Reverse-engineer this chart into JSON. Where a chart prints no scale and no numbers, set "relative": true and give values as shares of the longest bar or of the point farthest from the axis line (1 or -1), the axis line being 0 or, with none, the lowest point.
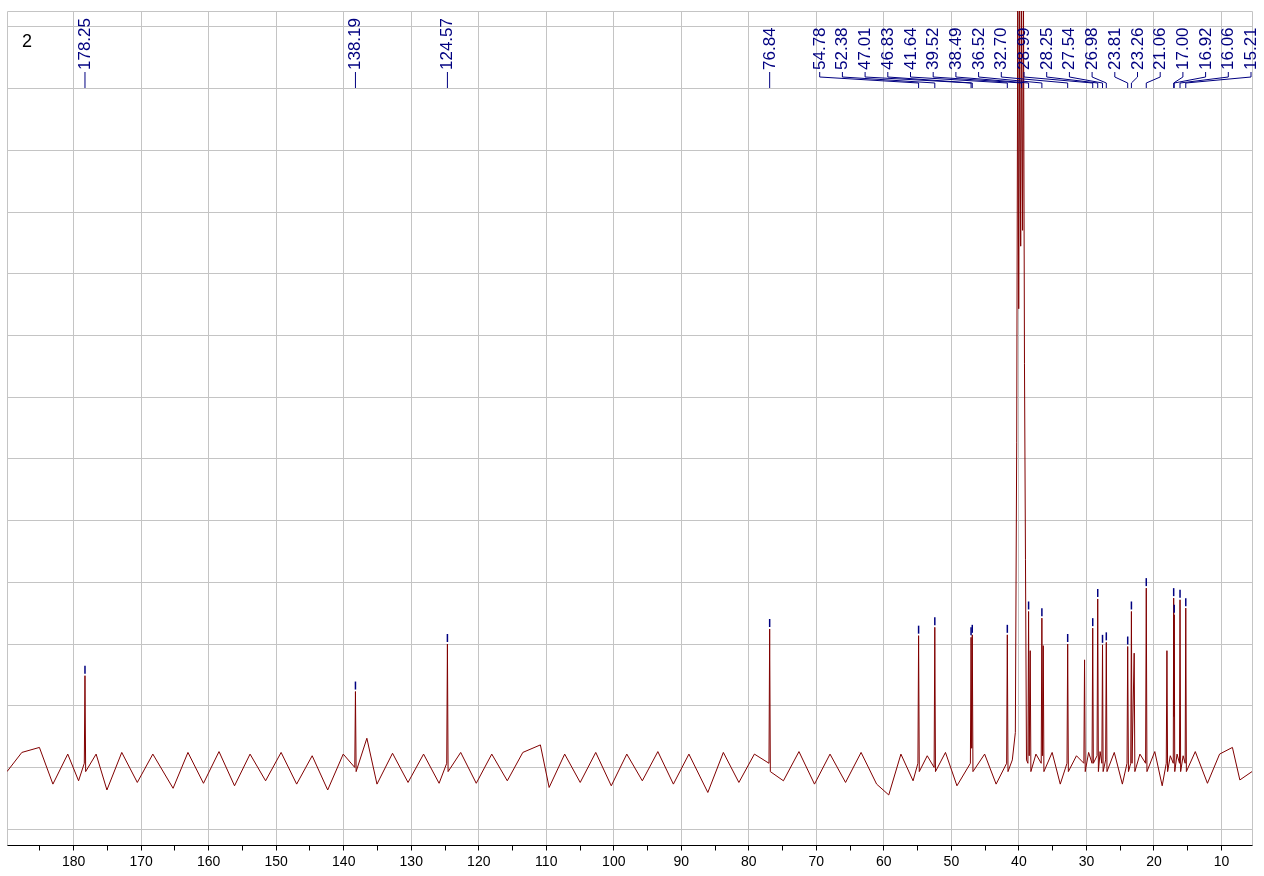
{
  "chart_data": {
    "type": "line",
    "title": "2",
    "relative": true,
    "x": [
      189.8,
      187.6,
      185.0,
      183.0,
      180.8,
      179.2,
      178.35,
      178.25,
      178.15,
      176.6,
      175.0,
      172.8,
      170.5,
      168.2,
      165.2,
      163.0,
      160.7,
      158.4,
      156.1,
      153.8,
      151.5,
      149.2,
      146.9,
      144.6,
      142.3,
      140.0,
      138.29,
      138.19,
      138.09,
      136.5,
      135.0,
      132.7,
      130.4,
      128.1,
      125.8,
      124.67,
      124.57,
      124.47,
      122.6,
      120.3,
      118.0,
      115.7,
      113.4,
      110.8,
      109.5,
      107.2,
      104.9,
      102.6,
      100.3,
      98.0,
      95.7,
      93.4,
      91.1,
      88.8,
      86.0,
      83.7,
      81.4,
      79.1,
      76.94,
      76.84,
      76.74,
      74.8,
      72.5,
      70.2,
      67.9,
      65.6,
      63.3,
      61.0,
      59.2,
      57.4,
      55.6,
      54.88,
      54.78,
      54.68,
      53.5,
      52.48,
      52.38,
      52.28,
      50.8,
      49.1,
      47.11,
      47.01,
      46.92,
      46.83,
      46.73,
      45.0,
      43.3,
      41.74,
      41.64,
      41.54,
      40.9,
      40.45,
      40.25,
      40.1,
      39.95,
      39.81,
      39.66,
      39.52,
      39.38,
      39.24,
      39.1,
      38.95,
      38.8,
      38.59,
      38.49,
      38.4,
      38.25,
      38.15,
      37.4,
      36.62,
      36.52,
      36.44,
      36.32,
      36.22,
      35.0,
      33.8,
      32.8,
      32.7,
      32.6,
      31.4,
      30.3,
      30.2,
      30.1,
      29.6,
      29.09,
      28.99,
      28.9,
      28.35,
      28.25,
      28.15,
      27.9,
      27.64,
      27.54,
      27.45,
      27.08,
      26.98,
      26.88,
      25.8,
      24.6,
      23.91,
      23.81,
      23.7,
      23.36,
      23.26,
      23.17,
      22.85,
      22.75,
      22.0,
      21.16,
      21.06,
      20.96,
      19.8,
      18.7,
      18.1,
      18.0,
      17.9,
      17.5,
      17.06,
      17.0,
      16.96,
      16.92,
      16.84,
      16.5,
      16.14,
      16.06,
      15.97,
      15.6,
      15.3,
      15.21,
      15.12,
      13.8,
      12.0,
      10.2,
      8.3,
      7.2,
      5.4
    ],
    "series": [
      {
        "color": "#800000",
        "values": [
          0.088,
          0.111,
          0.117,
          0.073,
          0.109,
          0.077,
          0.098,
          0.203,
          0.088,
          0.109,
          0.066,
          0.111,
          0.075,
          0.109,
          0.068,
          0.111,
          0.074,
          0.112,
          0.071,
          0.109,
          0.077,
          0.111,
          0.073,
          0.107,
          0.066,
          0.109,
          0.093,
          0.184,
          0.088,
          0.128,
          0.073,
          0.11,
          0.075,
          0.109,
          0.074,
          0.098,
          0.241,
          0.088,
          0.111,
          0.074,
          0.109,
          0.077,
          0.111,
          0.12,
          0.069,
          0.109,
          0.075,
          0.111,
          0.071,
          0.109,
          0.077,
          0.112,
          0.073,
          0.109,
          0.063,
          0.111,
          0.075,
          0.109,
          0.098,
          0.259,
          0.088,
          0.077,
          0.112,
          0.073,
          0.109,
          0.075,
          0.111,
          0.073,
          0.06,
          0.109,
          0.077,
          0.098,
          0.251,
          0.088,
          0.107,
          0.093,
          0.261,
          0.088,
          0.111,
          0.071,
          0.098,
          0.249,
          0.116,
          0.252,
          0.088,
          0.109,
          0.073,
          0.098,
          0.252,
          0.088,
          0.102,
          0.135,
          0.483,
          1,
          0.643,
          1,
          0.718,
          1,
          0.737,
          1,
          0.577,
          0.342,
          0.102,
          0.098,
          0.28,
          0.107,
          0.233,
          0.088,
          0.109,
          0.098,
          0.272,
          0.107,
          0.239,
          0.088,
          0.111,
          0.073,
          0.098,
          0.241,
          0.088,
          0.107,
          0.098,
          0.222,
          0.088,
          0.111,
          0.098,
          0.26,
          0.098,
          0.107,
          0.295,
          0.088,
          0.112,
          0.098,
          0.24,
          0.088,
          0.102,
          0.243,
          0.088,
          0.111,
          0.073,
          0.098,
          0.238,
          0.088,
          0.098,
          0.28,
          0.098,
          0.23,
          0.088,
          0.109,
          0.098,
          0.308,
          0.088,
          0.112,
          0.071,
          0.098,
          0.233,
          0.088,
          0.107,
          0.098,
          0.296,
          0.154,
          0.276,
          0.088,
          0.109,
          0.098,
          0.294,
          0.088,
          0.107,
          0.098,
          0.284,
          0.088,
          0.112,
          0.074,
          0.109,
          0.117,
          0.078,
          0.088
        ]
      }
    ],
    "xlim": [
      189.8,
      5.4
    ],
    "xticks": [
      {
        "value": 185,
        "label": null
      },
      180,
      {
        "value": 175,
        "label": null
      },
      170,
      {
        "value": 165,
        "label": null
      },
      160,
      {
        "value": 155,
        "label": null
      },
      150,
      {
        "value": 145,
        "label": null
      },
      140,
      {
        "value": 135,
        "label": null
      },
      130,
      {
        "value": 125,
        "label": null
      },
      120,
      {
        "value": 115,
        "label": null
      },
      110,
      {
        "value": 105,
        "label": null
      },
      100,
      {
        "value": 95,
        "label": null
      },
      90,
      {
        "value": 85,
        "label": null
      },
      80,
      {
        "value": 75,
        "label": null
      },
      70,
      {
        "value": 65,
        "label": null
      },
      60,
      {
        "value": 55,
        "label": null
      },
      50,
      {
        "value": 45,
        "label": null
      },
      40,
      {
        "value": 35,
        "label": null
      },
      30,
      {
        "value": 25,
        "label": null
      },
      20,
      {
        "value": 15,
        "label": null
      },
      10
    ],
    "grid": true,
    "annotations": [
      {
        "text": "178.25",
        "x": 178.25
      },
      {
        "text": "138.19",
        "x": 138.19
      },
      {
        "text": "124.57",
        "x": 124.57
      },
      {
        "text": "76.84",
        "x": 76.84
      },
      {
        "text": "54.78",
        "x": 54.78
      },
      {
        "text": "52.38",
        "x": 52.38
      },
      {
        "text": "47.01",
        "x": 47.01
      },
      {
        "text": "46.83",
        "x": 46.83
      },
      {
        "text": "41.64",
        "x": 41.64
      },
      {
        "text": "39.52",
        "x": 39.52
      },
      {
        "text": "38.49",
        "x": 38.49
      },
      {
        "text": "36.52",
        "x": 36.52
      },
      {
        "text": "32.70",
        "x": 32.7
      },
      {
        "text": "28.99",
        "x": 28.99
      },
      {
        "text": "28.25",
        "x": 28.25
      },
      {
        "text": "27.54",
        "x": 27.54
      },
      {
        "text": "26.98",
        "x": 26.98
      },
      {
        "text": "23.81",
        "x": 23.81
      },
      {
        "text": "23.26",
        "x": 23.26
      },
      {
        "text": "21.06",
        "x": 21.06
      },
      {
        "text": "17.00",
        "x": 17
      },
      {
        "text": "16.92",
        "x": 16.92
      },
      {
        "text": "16.06",
        "x": 16.06
      },
      {
        "text": "15.21",
        "x": 15.21
      }
    ]
  }
}
